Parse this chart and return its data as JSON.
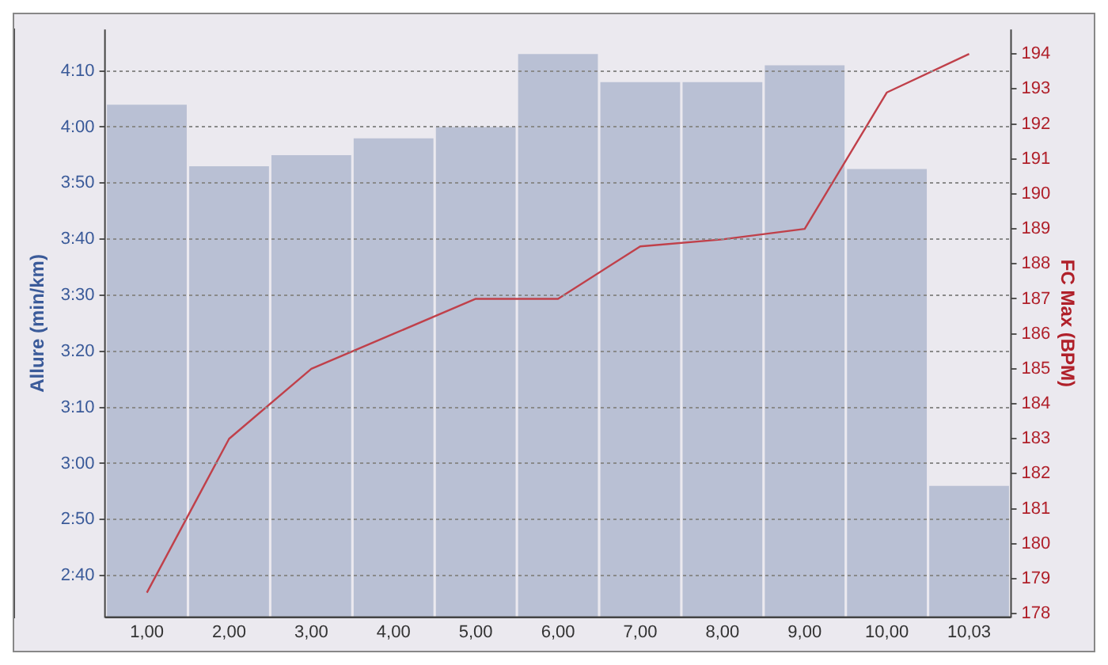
{
  "chart_data": {
    "type": "bar",
    "categories": [
      "1,00",
      "2,00",
      "3,00",
      "4,00",
      "5,00",
      "6,00",
      "7,00",
      "8,00",
      "9,00",
      "10,00",
      "10,03"
    ],
    "series": [
      {
        "color": "#b9c0d4",
        "values": [
          244,
          233,
          235,
          238,
          240,
          253,
          248,
          248,
          251,
          232.5,
          176
        ]
      },
      {
        "type": "line",
        "axis": "y2",
        "color": "#c0404a",
        "values": [
          178.6,
          183,
          185,
          186,
          187,
          187,
          188.5,
          188.7,
          189,
          192.9,
          194
        ]
      }
    ],
    "ylabel": "Allure (min/km)",
    "y2label": "FC Max (BPM)",
    "ylim": [
      152.6,
      257.4
    ],
    "yticks": [
      {
        "value": 160,
        "label": "2:40"
      },
      {
        "value": 170,
        "label": "2:50"
      },
      {
        "value": 180,
        "label": "3:00"
      },
      {
        "value": 190,
        "label": "3:10"
      },
      {
        "value": 200,
        "label": "3:20"
      },
      {
        "value": 210,
        "label": "3:30"
      },
      {
        "value": 220,
        "label": "3:40"
      },
      {
        "value": 230,
        "label": "3:50"
      },
      {
        "value": 240,
        "label": "4:00"
      },
      {
        "value": 250,
        "label": "4:10"
      }
    ],
    "y2lim": [
      177.9,
      194.7
    ],
    "y2ticks": [
      178,
      179,
      180,
      181,
      182,
      183,
      184,
      185,
      186,
      187,
      188,
      189,
      190,
      191,
      192,
      193,
      194
    ],
    "grid": "y",
    "legend": false,
    "marker": "none",
    "line_style": "solid"
  }
}
